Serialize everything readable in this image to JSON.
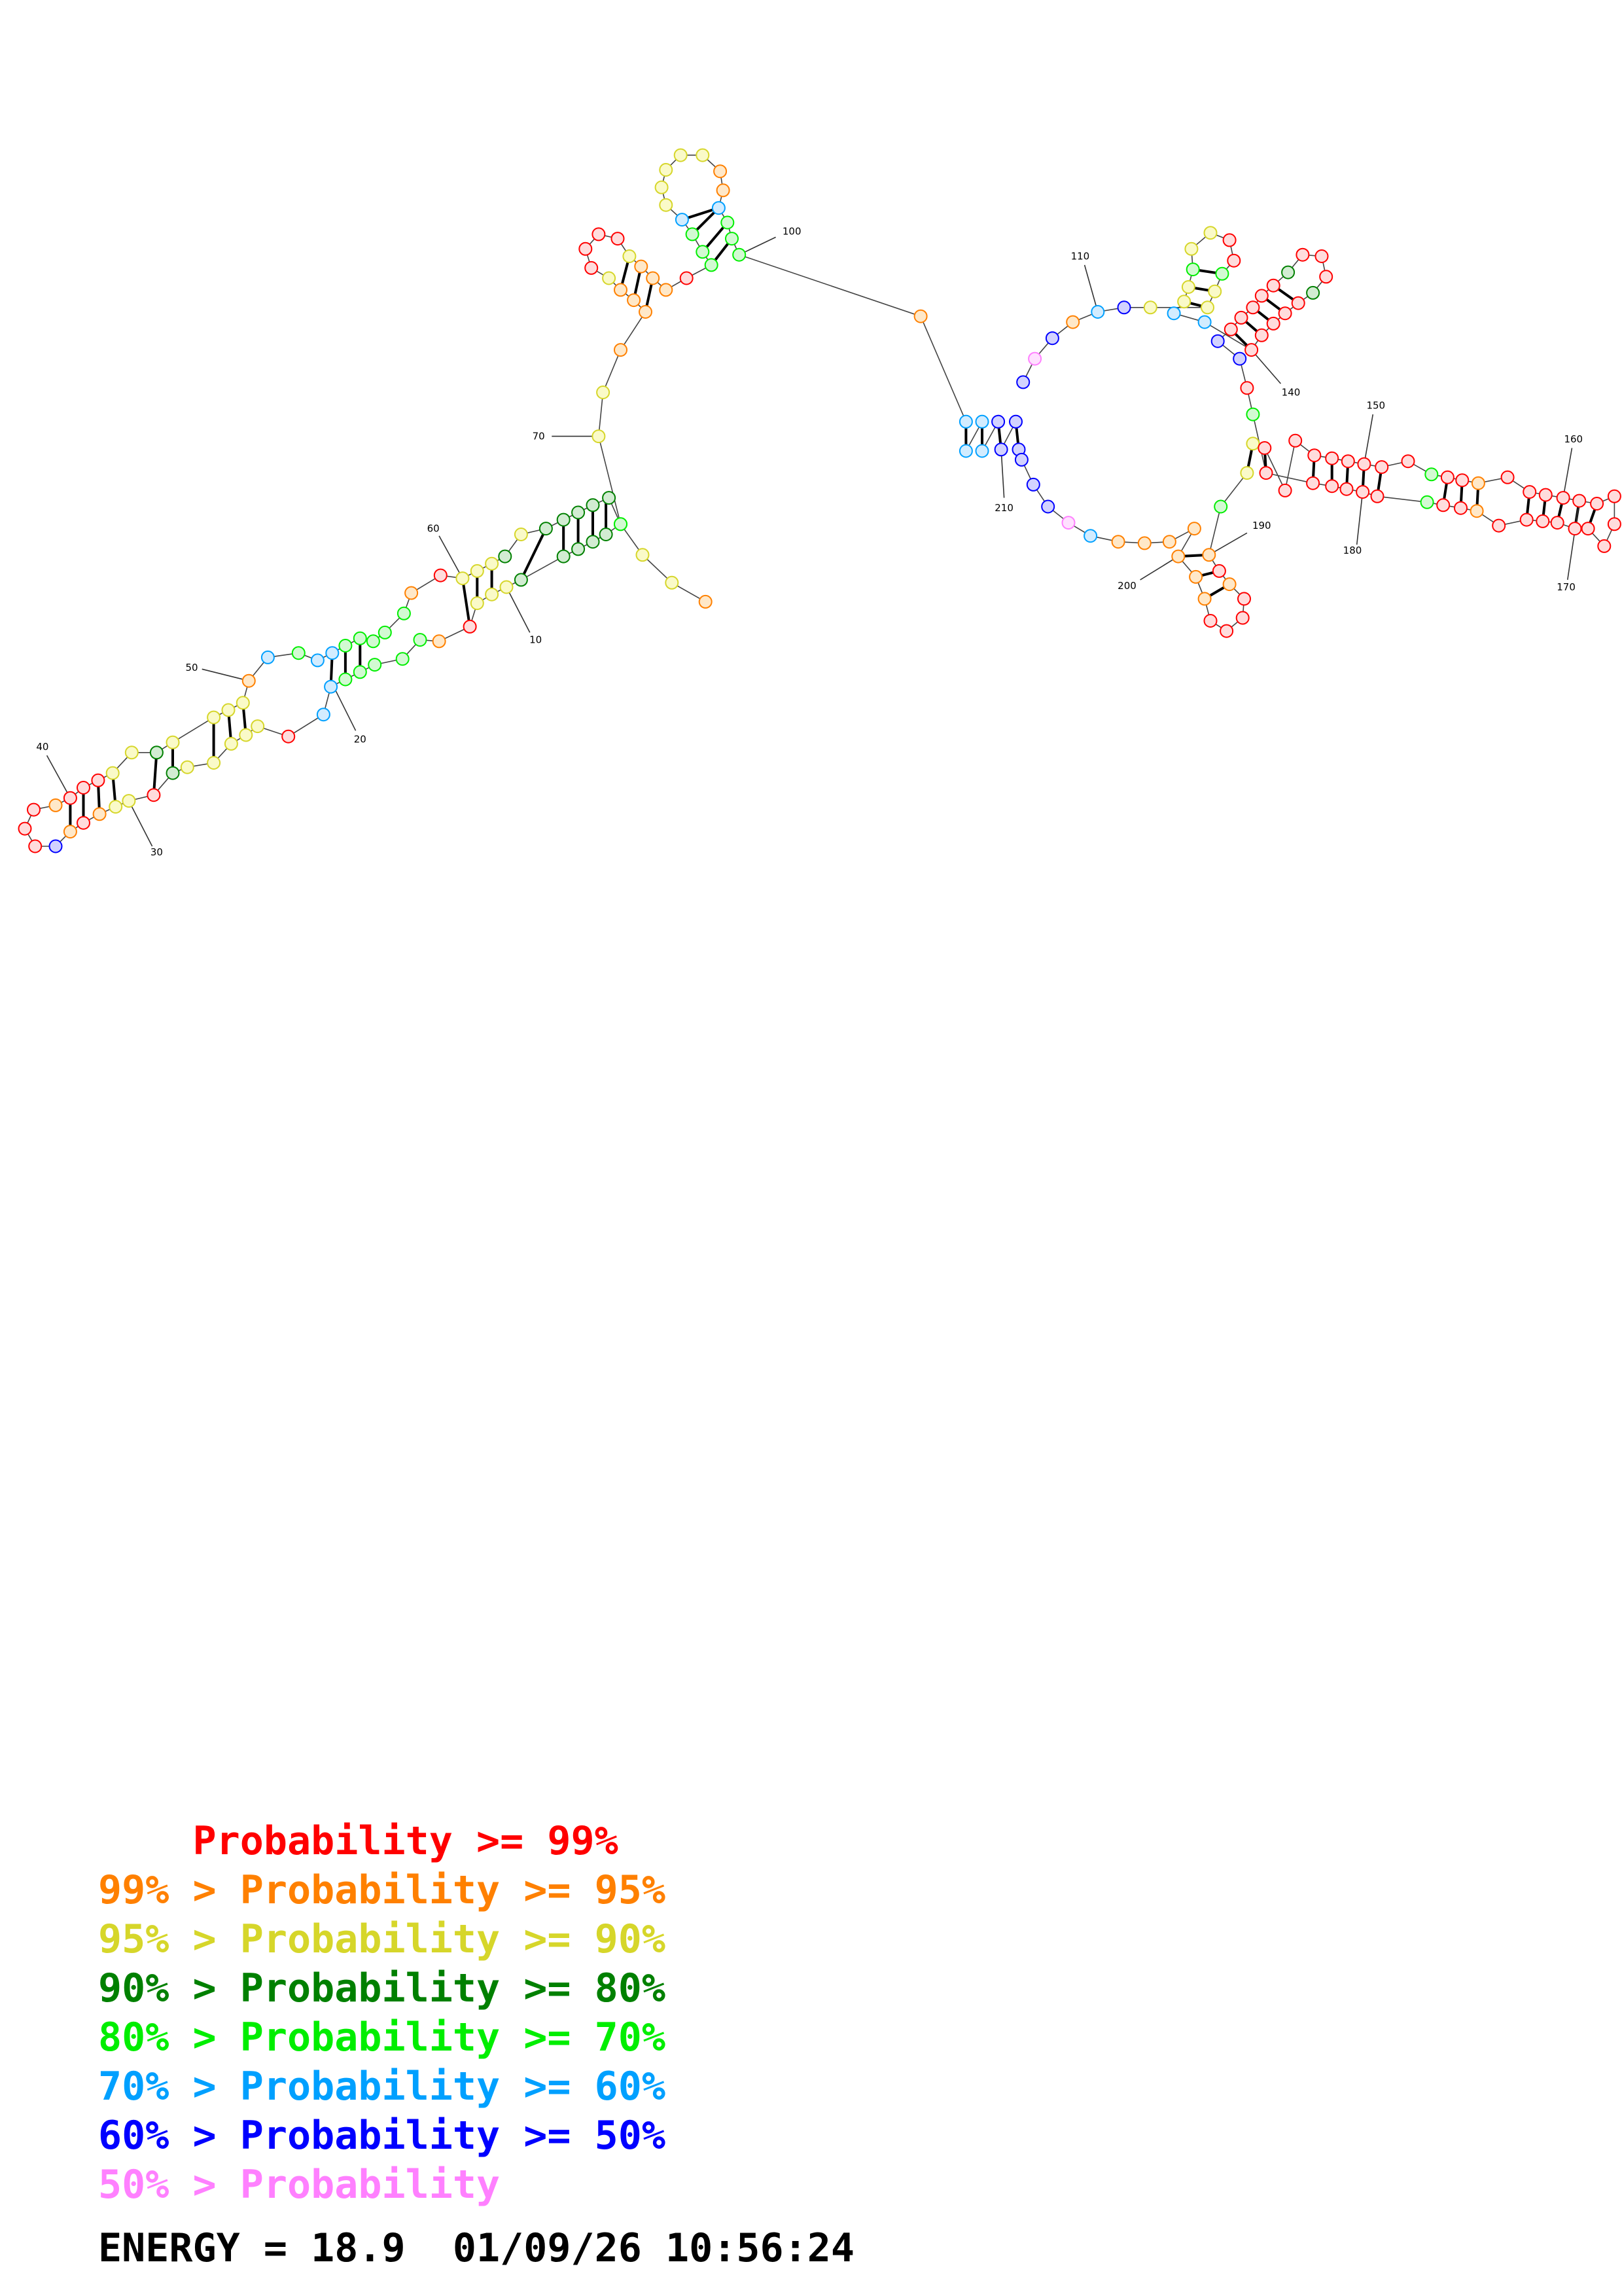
{
  "diagram": {
    "type": "rna-secondary-structure",
    "ticks": [
      {
        "label": "10"
      },
      {
        "label": "20"
      },
      {
        "label": "30"
      },
      {
        "label": "40"
      },
      {
        "label": "50"
      },
      {
        "label": "60"
      },
      {
        "label": "70"
      },
      {
        "label": "100"
      },
      {
        "label": "110"
      },
      {
        "label": "140"
      },
      {
        "label": "150"
      },
      {
        "label": "160"
      },
      {
        "label": "170"
      },
      {
        "label": "180"
      },
      {
        "label": "190"
      },
      {
        "label": "200"
      },
      {
        "label": "210"
      }
    ]
  },
  "legend": {
    "rows": [
      {
        "prefix": "    ",
        "text": "Probability >= 99%",
        "color": "#ff0000"
      },
      {
        "prefix": "",
        "text": "99% > Probability >= 95%",
        "color": "#ff8000"
      },
      {
        "prefix": "",
        "text": "95% > Probability >= 90%",
        "color": "#d6d62a"
      },
      {
        "prefix": "",
        "text": "90% > Probability >= 80%",
        "color": "#008000"
      },
      {
        "prefix": "",
        "text": "80% > Probability >= 70%",
        "color": "#00ee00"
      },
      {
        "prefix": "",
        "text": "70% > Probability >= 60%",
        "color": "#00a0ff"
      },
      {
        "prefix": "",
        "text": "60% > Probability >= 50%",
        "color": "#0000ff"
      },
      {
        "prefix": "",
        "text": "50% > Probability",
        "color": "#ff80ff"
      }
    ],
    "footer": "ENERGY = 18.9  01/09/26 10:56:24"
  },
  "colors": {
    "r": "#ff0000",
    "o": "#ff8000",
    "y": "#d6d62a",
    "g": "#008000",
    "l": "#00ee00",
    "c": "#00a0ff",
    "b": "#0000ff",
    "p": "#ff80ff",
    "fill_r": "#ffdcdc",
    "fill_o": "#ffe8c8",
    "fill_y": "#fafac8",
    "fill_g": "#d2ecd2",
    "fill_l": "#d2fad2",
    "fill_c": "#d2ecff",
    "fill_b": "#d2d2ff",
    "fill_p": "#ffe0ff"
  }
}
